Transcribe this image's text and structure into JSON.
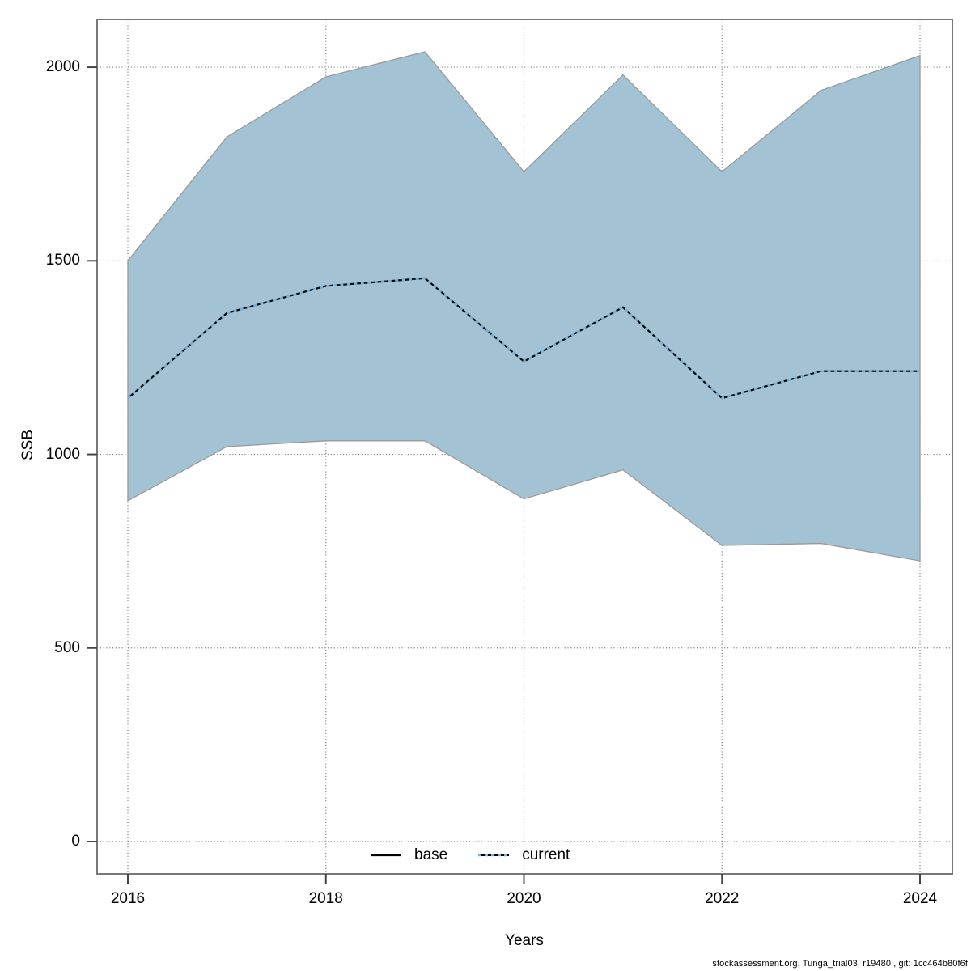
{
  "chart_data": {
    "type": "area",
    "title": "",
    "xlabel": "Years",
    "ylabel": "SSB",
    "x": [
      2016,
      2017,
      2018,
      2019,
      2020,
      2021,
      2022,
      2023,
      2024
    ],
    "series": [
      {
        "name": "base",
        "style": "solid",
        "color": "#000000",
        "values": [
          1145,
          1365,
          1435,
          1455,
          1240,
          1380,
          1145,
          1215,
          1215
        ]
      },
      {
        "name": "current",
        "style": "dotted",
        "color": "#74b3da",
        "values": [
          1145,
          1365,
          1435,
          1455,
          1240,
          1380,
          1145,
          1215,
          1215
        ]
      }
    ],
    "band": {
      "name": "confidence-interval",
      "upper": [
        1500,
        1820,
        1975,
        2040,
        1730,
        1980,
        1730,
        1940,
        2030
      ],
      "lower": [
        880,
        1020,
        1035,
        1035,
        885,
        960,
        765,
        770,
        725
      ],
      "fill": "#a3c2d3",
      "edge": "#9a9a9a"
    },
    "xticks": [
      2016,
      2018,
      2020,
      2022,
      2024
    ],
    "yticks": [
      0,
      500,
      1000,
      1500,
      2000
    ],
    "xlim": [
      2015.7,
      2024.33
    ],
    "ylim": [
      -85,
      2125
    ],
    "grid": "dotted",
    "legend": {
      "position": "bottom-center",
      "entries": [
        {
          "label": "base"
        },
        {
          "label": "current"
        }
      ]
    },
    "caption": "stockassessment.org, Tunga_trial03, r19480 , git: 1cc464b80f6f",
    "colors": {
      "axis_box": "#787878",
      "tick_mark": "#454545",
      "gridline": "#848484",
      "background": "#ffffff"
    }
  }
}
